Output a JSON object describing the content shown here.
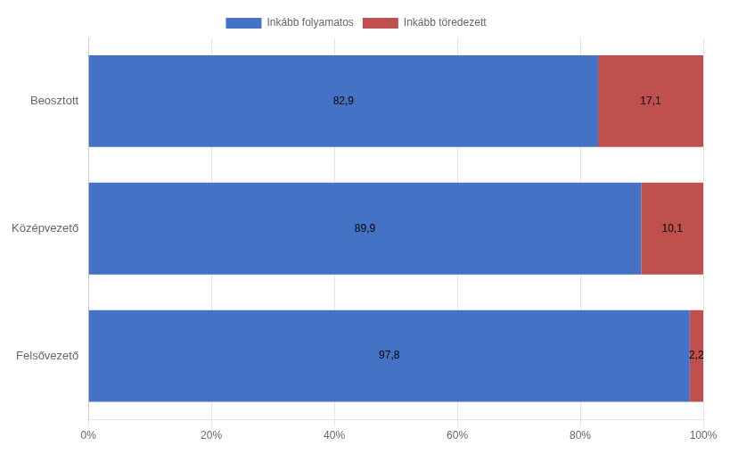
{
  "chart_data": {
    "type": "bar",
    "orientation": "horizontal",
    "stacked": true,
    "categories": [
      "Beosztott",
      "Középvezető",
      "Felsővezető"
    ],
    "series": [
      {
        "name": "Inkább folyamatos",
        "color": "#4472C4",
        "values": [
          82.9,
          89.9,
          97.8
        ],
        "value_labels": [
          "82,9",
          "89,9",
          "97,8"
        ]
      },
      {
        "name": "Inkább töredezett",
        "color": "#C0504D",
        "values": [
          17.1,
          10.1,
          2.2
        ],
        "value_labels": [
          "17,1",
          "10,1",
          "2,2"
        ]
      }
    ],
    "xlim": [
      0,
      100
    ],
    "xticks": [
      {
        "value": 0,
        "label": "0%"
      },
      {
        "value": 20,
        "label": "20%"
      },
      {
        "value": 40,
        "label": "40%"
      },
      {
        "value": 60,
        "label": "60%"
      },
      {
        "value": 80,
        "label": "80%"
      },
      {
        "value": 100,
        "label": "100%"
      }
    ],
    "grid": true,
    "legend": "top",
    "data_labels": true
  }
}
